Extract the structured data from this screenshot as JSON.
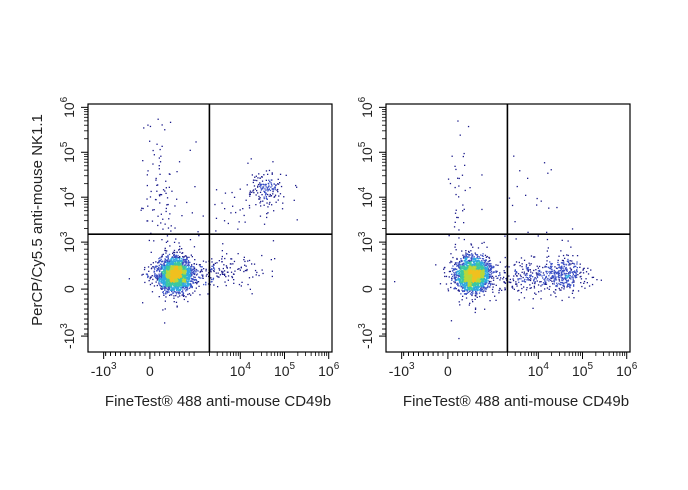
{
  "chart_data": [
    {
      "type": "scatter",
      "style": "density-colored flow cytometry dot plot with quadrant gates",
      "xlabel": "FineTest® 488 anti-mouse CD49b",
      "ylabel": "PerCP/Cy5.5 anti-mouse NK1.1",
      "x_ticks": [
        {
          "value": -1000,
          "base": "-10",
          "exp": "3"
        },
        {
          "value": 0,
          "base": "0",
          "exp": ""
        },
        {
          "value": 10000,
          "base": "10",
          "exp": "4"
        },
        {
          "value": 100000,
          "base": "10",
          "exp": "5"
        },
        {
          "value": 1000000,
          "base": "10",
          "exp": "6"
        }
      ],
      "y_ticks": [
        {
          "value": -1000,
          "base": "-10",
          "exp": "3"
        },
        {
          "value": 0,
          "base": "0",
          "exp": ""
        },
        {
          "value": 1000,
          "base": "10",
          "exp": "3"
        },
        {
          "value": 10000,
          "base": "10",
          "exp": "4"
        },
        {
          "value": 100000,
          "base": "10",
          "exp": "5"
        },
        {
          "value": 1000000,
          "base": "10",
          "exp": "6"
        }
      ],
      "gate": {
        "x": 2000,
        "y": 1500
      },
      "clusters": [
        {
          "x": 500,
          "y": 300,
          "count": 2600,
          "spread_x": 0.17,
          "spread_y": 0.16
        },
        {
          "x": 35000,
          "y": 15000,
          "count": 160,
          "spread_x": 0.2,
          "spread_y": 0.18
        },
        {
          "x": 4000,
          "y": 400,
          "count": 160,
          "spread_x": 0.45,
          "spread_y": 0.18
        },
        {
          "x": 200,
          "y": 8000,
          "count": 110,
          "spread_x": 0.16,
          "spread_y": 1.0
        },
        {
          "x": 5000,
          "y": 8000,
          "count": 45,
          "spread_x": 0.6,
          "spread_y": 0.5
        }
      ]
    },
    {
      "type": "scatter",
      "style": "density-colored flow cytometry dot plot with quadrant gates",
      "xlabel": "FineTest® 488 anti-mouse CD49b",
      "ylabel": "",
      "x_ticks": [
        {
          "value": -1000,
          "base": "-10",
          "exp": "3"
        },
        {
          "value": 0,
          "base": "0",
          "exp": ""
        },
        {
          "value": 10000,
          "base": "10",
          "exp": "4"
        },
        {
          "value": 100000,
          "base": "10",
          "exp": "5"
        },
        {
          "value": 1000000,
          "base": "10",
          "exp": "6"
        }
      ],
      "y_ticks": [
        {
          "value": -1000,
          "base": "-10",
          "exp": "3"
        },
        {
          "value": 0,
          "base": "0",
          "exp": ""
        },
        {
          "value": 1000,
          "base": "10",
          "exp": "3"
        },
        {
          "value": 10000,
          "base": "10",
          "exp": "4"
        },
        {
          "value": 100000,
          "base": "10",
          "exp": "5"
        },
        {
          "value": 1000000,
          "base": "10",
          "exp": "6"
        }
      ],
      "gate": {
        "x": 2000,
        "y": 1500
      },
      "clusters": [
        {
          "x": 500,
          "y": 300,
          "count": 2400,
          "spread_x": 0.17,
          "spread_y": 0.16
        },
        {
          "x": 35000,
          "y": 300,
          "count": 320,
          "spread_x": 0.22,
          "spread_y": 0.17
        },
        {
          "x": 6000,
          "y": 250,
          "count": 260,
          "spread_x": 0.5,
          "spread_y": 0.18
        },
        {
          "x": 200,
          "y": 6000,
          "count": 50,
          "spread_x": 0.15,
          "spread_y": 1.0
        },
        {
          "x": 8000,
          "y": 8000,
          "count": 25,
          "spread_x": 0.5,
          "spread_y": 0.5
        }
      ]
    }
  ],
  "colors": {
    "frame": "#000000",
    "gate_line": "#000000",
    "density_scale": [
      "#1a1a8a",
      "#3a4fc4",
      "#2fa8e0",
      "#3cc8a0",
      "#b8d83a",
      "#f0c020",
      "#e84020"
    ]
  }
}
